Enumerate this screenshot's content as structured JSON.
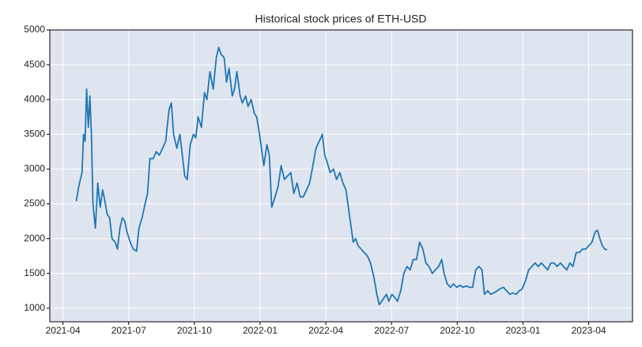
{
  "chart_data": {
    "type": "line",
    "title": "Historical stock prices of ETH-USD",
    "xlim": [
      -0.6,
      26.0
    ],
    "ylim": [
      805,
      5000
    ],
    "xticks": [
      {
        "value": 0,
        "label": "2021-04"
      },
      {
        "value": 3,
        "label": "2021-07"
      },
      {
        "value": 6,
        "label": "2021-10"
      },
      {
        "value": 9,
        "label": "2022-01"
      },
      {
        "value": 12,
        "label": "2022-04"
      },
      {
        "value": 15,
        "label": "2022-07"
      },
      {
        "value": 18,
        "label": "2022-10"
      },
      {
        "value": 21,
        "label": "2023-01"
      },
      {
        "value": 24,
        "label": "2023-04"
      }
    ],
    "yticks": [
      1000,
      1500,
      2000,
      2500,
      3000,
      3500,
      4000,
      4500,
      5000
    ],
    "grid": true,
    "background": "#dfe5ef",
    "x": [
      0.61,
      0.72,
      0.87,
      0.94,
      1.01,
      1.08,
      1.16,
      1.23,
      1.3,
      1.37,
      1.48,
      1.59,
      1.7,
      1.81,
      1.91,
      2.02,
      2.13,
      2.24,
      2.38,
      2.49,
      2.6,
      2.71,
      2.82,
      2.92,
      3.07,
      3.21,
      3.36,
      3.47,
      3.61,
      3.75,
      3.86,
      3.97,
      4.12,
      4.26,
      4.4,
      4.55,
      4.69,
      4.84,
      4.95,
      5.05,
      5.2,
      5.34,
      5.45,
      5.56,
      5.67,
      5.81,
      5.96,
      6.06,
      6.17,
      6.32,
      6.46,
      6.57,
      6.71,
      6.86,
      7.0,
      7.11,
      7.22,
      7.36,
      7.47,
      7.58,
      7.73,
      7.83,
      7.94,
      8.09,
      8.19,
      8.34,
      8.45,
      8.59,
      8.74,
      8.84,
      8.95,
      9.06,
      9.17,
      9.31,
      9.42,
      9.53,
      9.68,
      9.82,
      9.96,
      10.11,
      10.25,
      10.4,
      10.54,
      10.69,
      10.83,
      10.97,
      11.12,
      11.26,
      11.41,
      11.55,
      11.7,
      11.84,
      11.95,
      12.06,
      12.2,
      12.35,
      12.49,
      12.64,
      12.78,
      12.92,
      13.03,
      13.14,
      13.25,
      13.36,
      13.47,
      13.61,
      13.75,
      13.9,
      14.04,
      14.19,
      14.33,
      14.44,
      14.55,
      14.66,
      14.77,
      14.87,
      15.02,
      15.16,
      15.27,
      15.42,
      15.56,
      15.71,
      15.85,
      15.99,
      16.14,
      16.28,
      16.43,
      16.57,
      16.71,
      16.86,
      17.0,
      17.15,
      17.29,
      17.4,
      17.54,
      17.69,
      17.83,
      17.98,
      18.12,
      18.27,
      18.41,
      18.56,
      18.7,
      18.84,
      18.99,
      19.13,
      19.24,
      19.39,
      19.53,
      19.67,
      19.82,
      19.96,
      20.11,
      20.25,
      20.4,
      20.54,
      20.69,
      20.83,
      20.97,
      21.12,
      21.26,
      21.41,
      21.55,
      21.7,
      21.84,
      21.99,
      22.13,
      22.27,
      22.42,
      22.56,
      22.71,
      22.85,
      23.0,
      23.14,
      23.28,
      23.43,
      23.57,
      23.72,
      23.86,
      24.01,
      24.15,
      24.3,
      24.4,
      24.51,
      24.62,
      24.73,
      24.84
    ],
    "series": [
      {
        "name": "ETH-USD",
        "color": "#1f77b4",
        "values": [
          2540,
          2750,
          2950,
          3500,
          3400,
          4150,
          3600,
          4050,
          3500,
          2500,
          2150,
          2800,
          2450,
          2700,
          2550,
          2350,
          2300,
          2000,
          1950,
          1850,
          2150,
          2300,
          2250,
          2100,
          1950,
          1850,
          1820,
          2150,
          2300,
          2500,
          2650,
          3150,
          3150,
          3250,
          3200,
          3300,
          3400,
          3850,
          3950,
          3500,
          3300,
          3500,
          3200,
          2900,
          2850,
          3350,
          3500,
          3450,
          3750,
          3600,
          4100,
          4000,
          4400,
          4150,
          4600,
          4750,
          4650,
          4600,
          4250,
          4450,
          4050,
          4150,
          4400,
          4050,
          3950,
          4050,
          3900,
          4000,
          3800,
          3750,
          3550,
          3300,
          3050,
          3350,
          3200,
          2450,
          2600,
          2750,
          3050,
          2850,
          2900,
          2950,
          2650,
          2800,
          2600,
          2600,
          2700,
          2800,
          3050,
          3300,
          3400,
          3500,
          3200,
          3100,
          2950,
          3000,
          2850,
          2950,
          2800,
          2700,
          2450,
          2200,
          1950,
          2000,
          1900,
          1850,
          1800,
          1750,
          1650,
          1450,
          1200,
          1050,
          1100,
          1150,
          1200,
          1100,
          1200,
          1150,
          1100,
          1250,
          1500,
          1600,
          1550,
          1700,
          1700,
          1950,
          1850,
          1650,
          1600,
          1500,
          1550,
          1600,
          1700,
          1500,
          1350,
          1300,
          1350,
          1300,
          1330,
          1300,
          1320,
          1300,
          1300,
          1550,
          1600,
          1550,
          1200,
          1250,
          1200,
          1220,
          1250,
          1280,
          1300,
          1250,
          1200,
          1220,
          1200,
          1250,
          1280,
          1400,
          1550,
          1600,
          1650,
          1600,
          1650,
          1600,
          1550,
          1650,
          1650,
          1600,
          1650,
          1600,
          1550,
          1650,
          1600,
          1800,
          1800,
          1850,
          1850,
          1900,
          1950,
          2100,
          2120,
          2000,
          1900,
          1850,
          1840
        ]
      }
    ]
  }
}
